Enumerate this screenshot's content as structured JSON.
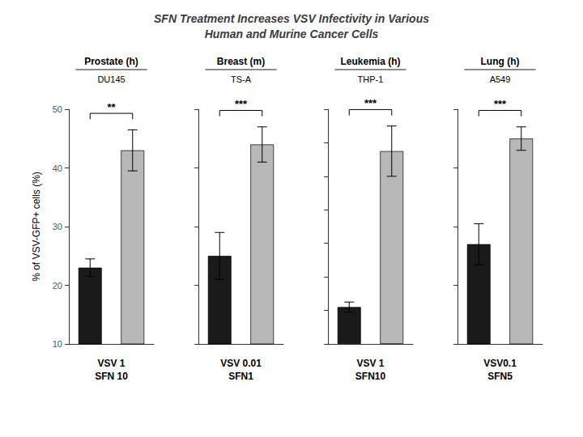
{
  "title": "SFN Treatment Increases VSV Infectivity in Various\nHuman and Murine Cancer Cells",
  "chart_data": [
    {
      "type": "bar",
      "title": "Prostate (h)",
      "subtitle": "DU145",
      "xlabel": "VSV 1\nSFN 10",
      "ylabel": "% of VSV-GFP+ cells (%)",
      "categories": [
        null,
        null
      ],
      "values": [
        23,
        43
      ],
      "errors": [
        1.5,
        3.5
      ],
      "colors": [
        "#1a1a1a",
        "#b8b8b8"
      ],
      "ylim": [
        10,
        50
      ],
      "yticks": [
        10,
        20,
        30,
        40,
        50
      ],
      "annotations": [
        "**"
      ],
      "grid": false,
      "tick_labels": "y"
    },
    {
      "type": "bar",
      "title": "Breast (m)",
      "subtitle": "TS-A",
      "xlabel": "VSV 0.01\nSFN1",
      "categories": [
        null,
        null
      ],
      "values": [
        35,
        54
      ],
      "errors": [
        4.0,
        3.0
      ],
      "colors": [
        "#1a1a1a",
        "#b8b8b8"
      ],
      "ylim": [
        20,
        60
      ],
      "yticks": [
        20,
        30,
        40,
        50,
        60
      ],
      "annotations": [
        "***"
      ],
      "grid": false,
      "tick_labels": false
    },
    {
      "type": "bar",
      "title": "Leukemia (h)",
      "subtitle": "THP-1",
      "xlabel": "VSV 1\nSFN10",
      "categories": [
        null,
        null
      ],
      "values": [
        2.2,
        11.5
      ],
      "errors": [
        0.3,
        1.5
      ],
      "colors": [
        "#1a1a1a",
        "#b8b8b8"
      ],
      "ylim": [
        0,
        14
      ],
      "yticks": [
        0,
        2,
        4,
        6,
        8,
        10,
        12,
        14
      ],
      "annotations": [
        "***"
      ],
      "grid": false,
      "tick_labels": false
    },
    {
      "type": "bar",
      "title": "Lung (h)",
      "subtitle": "A549",
      "xlabel": "VSV0.1\nSFN5",
      "categories": [
        null,
        null
      ],
      "values": [
        47,
        65
      ],
      "errors": [
        3.5,
        2.0
      ],
      "colors": [
        "#1a1a1a",
        "#b8b8b8"
      ],
      "ylim": [
        30,
        70
      ],
      "yticks": [
        30,
        40,
        50,
        60,
        70
      ],
      "annotations": [
        "***"
      ],
      "grid": false,
      "tick_labels": false
    }
  ]
}
